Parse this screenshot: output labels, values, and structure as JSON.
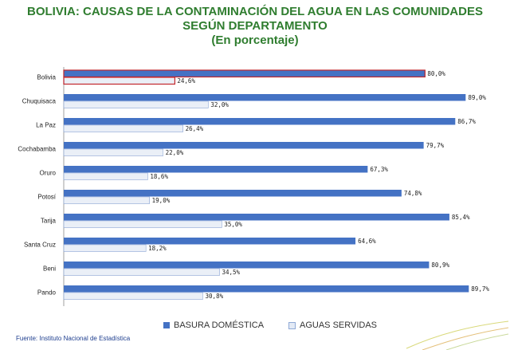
{
  "title_lines": [
    "BOLIVIA: CAUSAS DE LA CONTAMINACIÓN DEL  AGUA EN LAS COMUNIDADES",
    "SEGÚN DEPARTAMENTO",
    "(En porcentaje)"
  ],
  "source": "Fuente: Instituto Nacional de Estadística",
  "colors": {
    "title": "#2f7d2f",
    "basura": "#4472c4",
    "aguas_border": "#8fa9d6",
    "highlight": "#c0262c"
  },
  "chart_data": {
    "type": "bar",
    "orientation": "horizontal",
    "title": "BOLIVIA: CAUSAS DE LA CONTAMINACIÓN DEL  AGUA EN LAS COMUNIDADES SEGÚN DEPARTAMENTO (En porcentaje)",
    "categories": [
      "Bolivia",
      "Chuquisaca",
      "La Paz",
      "Cochabamba",
      "Oruro",
      "Potosí",
      "Tarija",
      "Santa Cruz",
      "Beni",
      "Pando"
    ],
    "series": [
      {
        "name": "BASURA DOMÉSTICA",
        "values": [
          80.0,
          89.0,
          86.7,
          79.7,
          67.3,
          74.8,
          85.4,
          64.6,
          80.9,
          89.7
        ],
        "labels": [
          "80,0%",
          "89,0%",
          "86,7%",
          "79,7%",
          "67,3%",
          "74,8%",
          "85,4%",
          "64,6%",
          "80,9%",
          "89,7%"
        ]
      },
      {
        "name": "AGUAS SERVIDAS",
        "values": [
          24.6,
          32.0,
          26.4,
          22.0,
          18.6,
          19.0,
          35.0,
          18.2,
          34.5,
          30.8
        ],
        "labels": [
          "24,6%",
          "32,0%",
          "26,4%",
          "22,0%",
          "18,6%",
          "19,0%",
          "35,0%",
          "18,2%",
          "34,5%",
          "30,8%"
        ]
      }
    ],
    "highlighted_category": "Bolivia",
    "xlim": [
      0,
      90
    ],
    "grid": false,
    "legend_position": "bottom"
  }
}
